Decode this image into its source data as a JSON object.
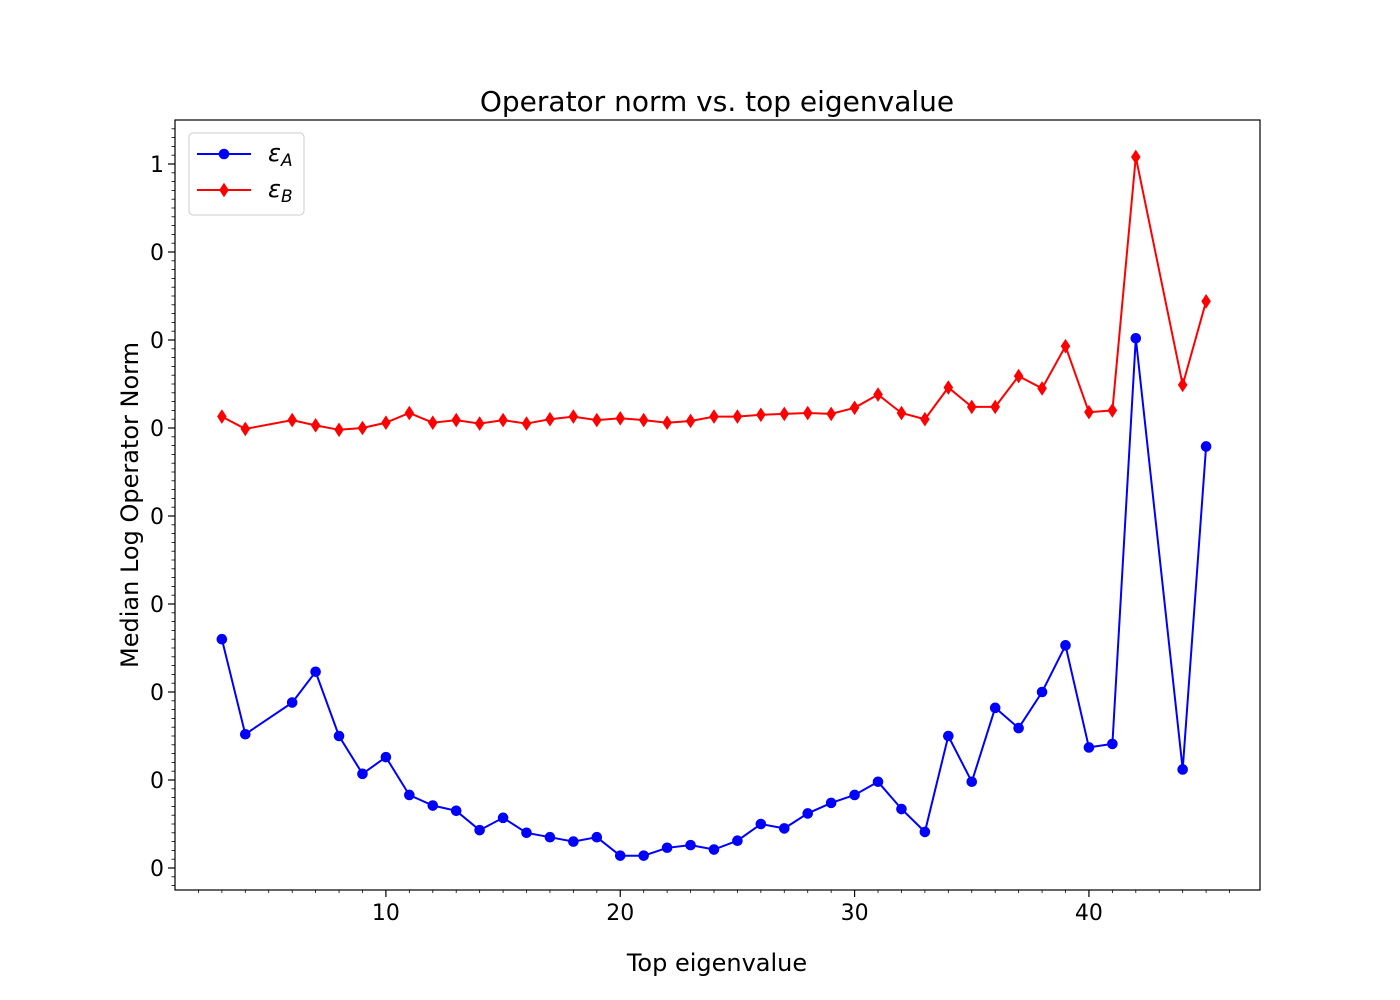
{
  "chart_data": {
    "type": "line",
    "title": "Operator norm vs. top eigenvalue",
    "xlabel": "Top eigenvalue",
    "ylabel": "Median Log Operator Norm",
    "xlim": [
      1.0,
      47.3
    ],
    "ylim": [
      -0.025,
      0.85
    ],
    "x_ticks": [
      10,
      20,
      30,
      40
    ],
    "y_ticks": [
      0.0,
      0.1,
      0.2,
      0.3,
      0.4,
      0.5,
      0.6,
      0.7,
      0.8
    ],
    "y_tick_labels": [
      "0",
      "0",
      "0",
      "0",
      "0",
      "0",
      "0",
      "0",
      "1"
    ],
    "grid": false,
    "legend_position": "upper-left",
    "series": [
      {
        "name": "εA",
        "legend_main": "ε",
        "legend_sub": "A",
        "color": "#0000ff",
        "marker": "circle",
        "x": [
          3,
          4,
          6,
          7,
          8,
          9,
          10,
          11,
          12,
          13,
          14,
          15,
          16,
          17,
          18,
          19,
          20,
          21,
          22,
          23,
          24,
          25,
          26,
          27,
          28,
          29,
          30,
          31,
          32,
          33,
          34,
          35,
          36,
          37,
          38,
          39,
          40,
          41,
          42,
          44,
          45
        ],
        "y": [
          0.26,
          0.152,
          0.188,
          0.223,
          0.15,
          0.107,
          0.126,
          0.083,
          0.071,
          0.065,
          0.043,
          0.057,
          0.04,
          0.035,
          0.03,
          0.035,
          0.014,
          0.014,
          0.023,
          0.026,
          0.021,
          0.031,
          0.05,
          0.045,
          0.062,
          0.074,
          0.083,
          0.098,
          0.067,
          0.041,
          0.15,
          0.098,
          0.182,
          0.159,
          0.2,
          0.253,
          0.137,
          0.141,
          0.602,
          0.112,
          0.479
        ]
      },
      {
        "name": "εB",
        "legend_main": "ε",
        "legend_sub": "B",
        "color": "#ff0000",
        "marker": "diamond",
        "x": [
          3,
          4,
          6,
          7,
          8,
          9,
          10,
          11,
          12,
          13,
          14,
          15,
          16,
          17,
          18,
          19,
          20,
          21,
          22,
          23,
          24,
          25,
          26,
          27,
          28,
          29,
          30,
          31,
          32,
          33,
          34,
          35,
          36,
          37,
          38,
          39,
          40,
          41,
          42,
          44,
          45
        ],
        "y": [
          0.513,
          0.499,
          0.509,
          0.503,
          0.498,
          0.5,
          0.506,
          0.517,
          0.506,
          0.509,
          0.505,
          0.509,
          0.505,
          0.51,
          0.513,
          0.509,
          0.511,
          0.509,
          0.506,
          0.508,
          0.513,
          0.513,
          0.515,
          0.516,
          0.517,
          0.516,
          0.523,
          0.538,
          0.517,
          0.51,
          0.546,
          0.524,
          0.524,
          0.559,
          0.545,
          0.593,
          0.518,
          0.52,
          0.808,
          0.549,
          0.644
        ]
      }
    ]
  }
}
